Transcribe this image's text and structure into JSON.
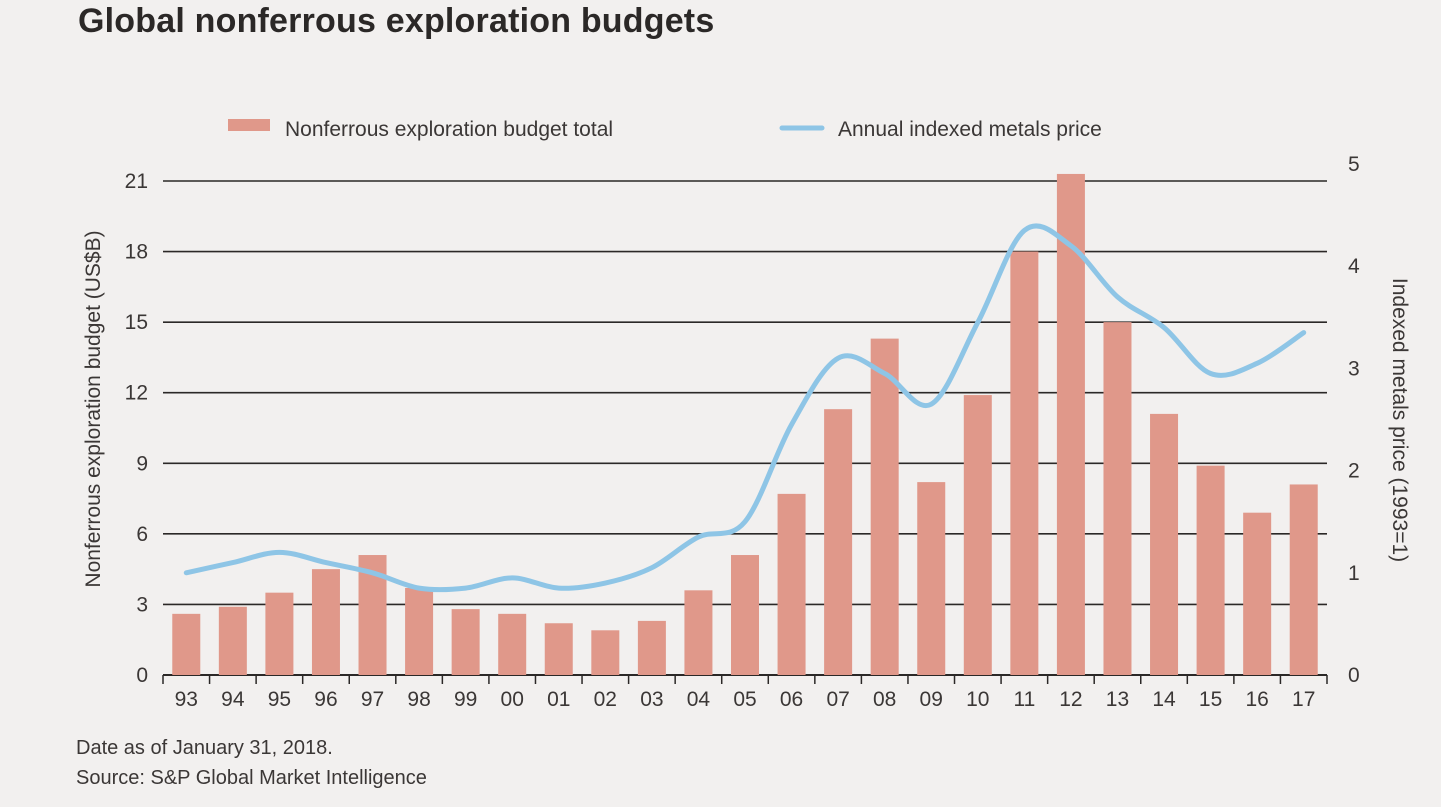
{
  "chart_data": {
    "type": "bar",
    "title": "Global nonferrous exploration budgets",
    "categories": [
      "93",
      "94",
      "95",
      "96",
      "97",
      "98",
      "99",
      "00",
      "01",
      "02",
      "03",
      "04",
      "05",
      "06",
      "07",
      "08",
      "09",
      "10",
      "11",
      "12",
      "13",
      "14",
      "15",
      "16",
      "17"
    ],
    "series": [
      {
        "name": "Nonferrous exploration budget total",
        "type": "bar",
        "axis": "left",
        "color": "#e0988a",
        "values": [
          2.6,
          2.9,
          3.5,
          4.5,
          5.1,
          3.7,
          2.8,
          2.6,
          2.2,
          1.9,
          2.3,
          3.6,
          5.1,
          7.7,
          11.3,
          14.3,
          8.2,
          11.9,
          18.0,
          21.3,
          15.0,
          11.1,
          8.9,
          6.9,
          8.1
        ]
      },
      {
        "name": "Annual indexed metals price",
        "type": "line",
        "axis": "right",
        "color": "#8ec5e6",
        "values": [
          1.0,
          1.1,
          1.2,
          1.1,
          1.0,
          0.85,
          0.85,
          0.95,
          0.85,
          0.9,
          1.05,
          1.35,
          1.5,
          2.45,
          3.1,
          2.95,
          2.65,
          3.45,
          4.35,
          4.2,
          3.7,
          3.4,
          2.95,
          3.05,
          3.35
        ]
      }
    ],
    "ylabel": "Nonferrous exploration budget (US$B)",
    "y2label": "Indexed metals price (1993=1)",
    "ylim": [
      0,
      21
    ],
    "y2lim": [
      0,
      5
    ],
    "yticks": [
      "0",
      "3",
      "6",
      "9",
      "12",
      "15",
      "18",
      "21"
    ],
    "y2ticks": [
      "0",
      "1",
      "2",
      "3",
      "4",
      "5"
    ],
    "grid": true,
    "legend_position": "top"
  },
  "footnote": {
    "date": "Date as of January 31, 2018.",
    "source": "Source: S&P Global Market Intelligence"
  }
}
